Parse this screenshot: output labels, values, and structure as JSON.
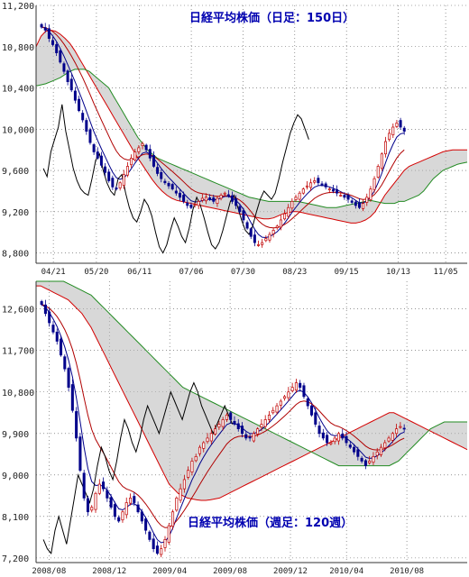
{
  "colors": {
    "up_candle": "#c00000",
    "down_candle": "#00008b",
    "tenkan_line": "#00008b",
    "kijun_line": "#b00000",
    "senkou_a": "#d40000",
    "senkou_b": "#228b22",
    "chikou_span": "#000000",
    "cloud_fill": "#b8b8b8",
    "grid": "#555555",
    "title_text": "#0000b0"
  },
  "chart_data": [
    {
      "type": "candlestick",
      "title": "日経平均株価（日足：150日）",
      "ylim": [
        8700,
        11200
      ],
      "yticks": [
        "11,200",
        "10,800",
        "10,400",
        "10,000",
        "9,600",
        "9,200",
        "8,800"
      ],
      "ytick_values": [
        11200,
        10800,
        10400,
        10000,
        9600,
        9200,
        8800
      ],
      "xticks": [
        "04/21",
        "05/20",
        "06/11",
        "07/06",
        "07/30",
        "08/23",
        "09/15",
        "10/13",
        "11/05"
      ],
      "xtick_positions": [
        0.04,
        0.14,
        0.24,
        0.36,
        0.48,
        0.6,
        0.72,
        0.84,
        0.95
      ],
      "grid": true,
      "close": [
        10990,
        10960,
        10880,
        10820,
        10740,
        10650,
        10560,
        10460,
        10380,
        10280,
        10180,
        10090,
        9980,
        9870,
        9780,
        9720,
        9650,
        9580,
        9500,
        9440,
        9420,
        9480,
        9560,
        9640,
        9720,
        9780,
        9820,
        9860,
        9800,
        9720,
        9640,
        9570,
        9520,
        9480,
        9450,
        9420,
        9380,
        9340,
        9300,
        9260,
        9240,
        9270,
        9300,
        9330,
        9340,
        9320,
        9300,
        9330,
        9360,
        9380,
        9350,
        9300,
        9260,
        9200,
        9120,
        9040,
        8960,
        8900,
        8880,
        8900,
        8940,
        8980,
        9020,
        9060,
        9120,
        9180,
        9240,
        9300,
        9340,
        9380,
        9420,
        9450,
        9480,
        9500,
        9480,
        9460,
        9440,
        9420,
        9400,
        9380,
        9360,
        9340,
        9320,
        9290,
        9260,
        9240,
        9280,
        9340,
        9420,
        9520,
        9640,
        9760,
        9880,
        9960,
        10020,
        10060,
        10020,
        9980
      ],
      "cloud_a": [
        10800,
        10900,
        10950,
        10960,
        10950,
        10920,
        10880,
        10830,
        10760,
        10680,
        10600,
        10520,
        10440,
        10360,
        10280,
        10200,
        10120,
        10040,
        9960,
        9880,
        9800,
        9720,
        9650,
        9580,
        9510,
        9450,
        9400,
        9360,
        9330,
        9310,
        9300,
        9290,
        9280,
        9270,
        9260,
        9250,
        9240,
        9230,
        9220,
        9210,
        9200,
        9190,
        9180,
        9170,
        9160,
        9150,
        9140,
        9130,
        9130,
        9140,
        9160,
        9180,
        9190,
        9200,
        9200,
        9190,
        9180,
        9170,
        9160,
        9150,
        9140,
        9130,
        9120,
        9110,
        9100,
        9090,
        9090,
        9100,
        9120,
        9150,
        9200,
        9280,
        9360,
        9420,
        9480,
        9540,
        9600,
        9640,
        9660,
        9680,
        9700,
        9720,
        9740,
        9760,
        9780,
        9790,
        9800,
        9800,
        9800,
        9800
      ],
      "cloud_b": [
        10420,
        10430,
        10440,
        10460,
        10480,
        10500,
        10530,
        10560,
        10580,
        10580,
        10580,
        10560,
        10520,
        10480,
        10440,
        10400,
        10320,
        10240,
        10160,
        10080,
        10000,
        9920,
        9860,
        9800,
        9760,
        9720,
        9700,
        9680,
        9660,
        9640,
        9620,
        9600,
        9580,
        9560,
        9540,
        9520,
        9500,
        9480,
        9460,
        9440,
        9420,
        9400,
        9380,
        9360,
        9340,
        9330,
        9320,
        9310,
        9300,
        9300,
        9300,
        9300,
        9300,
        9300,
        9300,
        9290,
        9280,
        9270,
        9260,
        9250,
        9240,
        9240,
        9240,
        9250,
        9260,
        9270,
        9280,
        9290,
        9300,
        9310,
        9300,
        9290,
        9280,
        9280,
        9280,
        9300,
        9300,
        9320,
        9340,
        9360,
        9400,
        9460,
        9520,
        9560,
        9600,
        9620,
        9640,
        9660,
        9670,
        9680
      ],
      "chikou": [
        9620,
        9540,
        9780,
        9900,
        10020,
        10240,
        9980,
        9800,
        9620,
        9500,
        9420,
        9380,
        9360,
        9520,
        9700,
        9760,
        9600,
        9480,
        9400,
        9360,
        9520,
        9560,
        9380,
        9240,
        9140,
        9100,
        9200,
        9320,
        9260,
        9160,
        9000,
        8860,
        8800,
        8880,
        9020,
        9140,
        9060,
        8960,
        8900,
        9040,
        9220,
        9340,
        9260,
        9140,
        9000,
        8880,
        8840,
        8900,
        9020,
        9160,
        9300,
        9360,
        9240,
        9120,
        9020,
        8980,
        9060,
        9200,
        9320,
        9400,
        9360,
        9320,
        9380,
        9520,
        9680,
        9820,
        9960,
        10060,
        10140,
        10100,
        10000,
        9900
      ]
    },
    {
      "type": "candlestick",
      "title": "日経平均株価（週足：120週）",
      "ylim": [
        7100,
        13200
      ],
      "yticks": [
        "12,600",
        "11,700",
        "10,800",
        "9,900",
        "9,000",
        "8,100",
        "7,200"
      ],
      "ytick_values": [
        12600,
        11700,
        10800,
        9900,
        9000,
        8100,
        7200
      ],
      "xticks": [
        "2008/08",
        "2008/12",
        "2009/04",
        "2009/08",
        "2009/12",
        "2010/04",
        "2010/08"
      ],
      "xtick_positions": [
        0.03,
        0.17,
        0.31,
        0.45,
        0.59,
        0.72,
        0.86
      ],
      "grid": true,
      "close": [
        12700,
        12500,
        12300,
        12100,
        11900,
        11600,
        11300,
        10900,
        10400,
        9800,
        9100,
        8500,
        8200,
        8300,
        8600,
        8800,
        8700,
        8500,
        8300,
        8100,
        8000,
        8200,
        8400,
        8500,
        8400,
        8200,
        8000,
        7800,
        7600,
        7400,
        7300,
        7400,
        7600,
        7900,
        8200,
        8500,
        8700,
        8900,
        9100,
        9300,
        9400,
        9600,
        9700,
        9800,
        9900,
        10000,
        10100,
        10200,
        10300,
        10200,
        10100,
        10000,
        9900,
        9800,
        9800,
        9900,
        10000,
        10100,
        10200,
        10300,
        10400,
        10500,
        10600,
        10700,
        10800,
        10900,
        11000,
        10900,
        10700,
        10500,
        10300,
        10100,
        9900,
        9800,
        9700,
        9700,
        9800,
        9900,
        9800,
        9700,
        9600,
        9500,
        9400,
        9300,
        9200,
        9300,
        9400,
        9500,
        9600,
        9700,
        9800,
        9900,
        10000,
        10050,
        10000
      ],
      "cloud_a": [
        13100,
        13100,
        13050,
        13000,
        12950,
        12900,
        12850,
        12800,
        12700,
        12600,
        12500,
        12350,
        12200,
        12000,
        11800,
        11600,
        11400,
        11200,
        11000,
        10800,
        10600,
        10400,
        10200,
        10000,
        9800,
        9600,
        9400,
        9200,
        9000,
        8800,
        8700,
        8600,
        8550,
        8500,
        8480,
        8460,
        8450,
        8450,
        8460,
        8480,
        8500,
        8550,
        8600,
        8650,
        8700,
        8750,
        8800,
        8850,
        8900,
        8950,
        9000,
        9050,
        9100,
        9150,
        9200,
        9250,
        9300,
        9350,
        9400,
        9450,
        9500,
        9550,
        9600,
        9650,
        9700,
        9750,
        9800,
        9850,
        9900,
        9950,
        10000,
        10050,
        10100,
        10150,
        10200,
        10250,
        10300,
        10350,
        10350,
        10300,
        10250,
        10200,
        10150,
        10100,
        10050,
        10000,
        9950,
        9900,
        9850,
        9800,
        9750,
        9700,
        9650,
        9600,
        9550
      ],
      "cloud_b": [
        13200,
        13200,
        13200,
        13200,
        13200,
        13200,
        13200,
        13150,
        13100,
        13050,
        13000,
        12950,
        12900,
        12800,
        12700,
        12600,
        12500,
        12400,
        12300,
        12200,
        12100,
        12000,
        11900,
        11800,
        11700,
        11600,
        11500,
        11400,
        11300,
        11200,
        11100,
        11000,
        10900,
        10850,
        10800,
        10750,
        10700,
        10650,
        10600,
        10550,
        10500,
        10450,
        10400,
        10350,
        10300,
        10250,
        10200,
        10150,
        10100,
        10050,
        10000,
        9950,
        9900,
        9850,
        9800,
        9750,
        9700,
        9650,
        9600,
        9550,
        9500,
        9450,
        9400,
        9350,
        9300,
        9250,
        9200,
        9200,
        9200,
        9200,
        9200,
        9200,
        9200,
        9200,
        9200,
        9200,
        9200,
        9200,
        9250,
        9300,
        9400,
        9500,
        9600,
        9700,
        9800,
        9900,
        10000,
        10050,
        10100,
        10150,
        10150,
        10150,
        10150,
        10150,
        10150
      ],
      "chikou": [
        7600,
        7400,
        7300,
        7800,
        8100,
        7800,
        7500,
        8000,
        8500,
        9000,
        8800,
        8600,
        8400,
        8700,
        9200,
        9600,
        9400,
        9100,
        8900,
        9300,
        9800,
        10200,
        10000,
        9700,
        9500,
        9800,
        10200,
        10500,
        10300,
        10100,
        9900,
        10200,
        10500,
        10800,
        10600,
        10400,
        10200,
        10500,
        10800,
        11000,
        10800,
        10500,
        10300,
        10100,
        9900,
        10100,
        10300,
        10500,
        10300,
        10100
      ]
    }
  ]
}
